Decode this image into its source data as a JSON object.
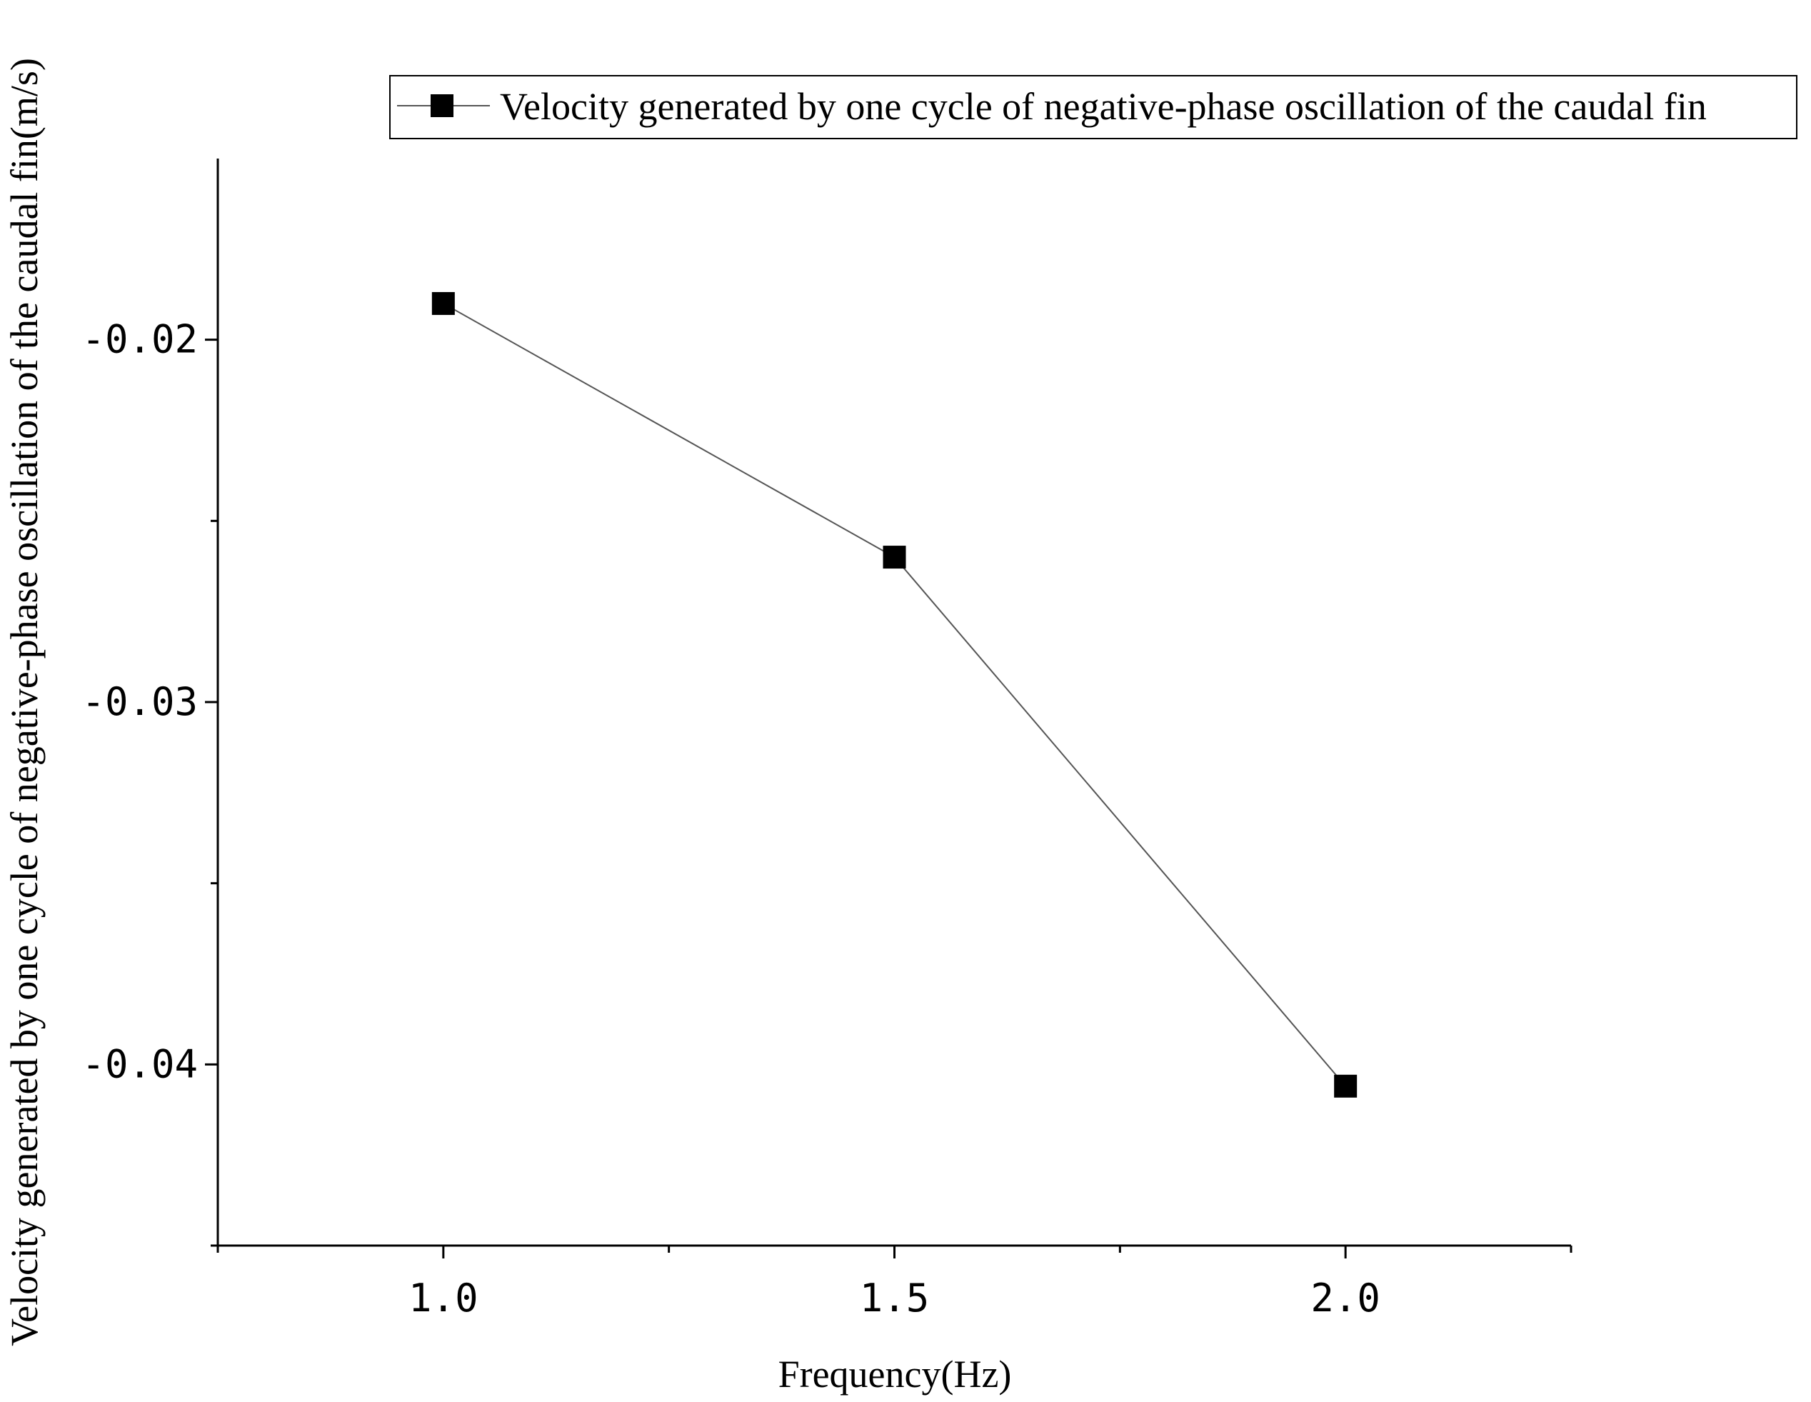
{
  "chart_data": {
    "type": "line",
    "title": "",
    "xlabel": "Frequency(Hz)",
    "ylabel": "Velocity generated by one cycle of negative-phase oscillation of the caudal fin(m/s)",
    "xlim": [
      0.75,
      2.25
    ],
    "ylim": [
      -0.045,
      -0.015
    ],
    "x_ticks": [
      1.0,
      1.5,
      2.0
    ],
    "x_tick_labels": [
      "1.0",
      "1.5",
      "2.0"
    ],
    "x_minor_ticks": [
      0.75,
      1.25,
      1.75,
      2.25
    ],
    "y_ticks": [
      -0.02,
      -0.03,
      -0.04
    ],
    "y_tick_labels": [
      "-0.02",
      "-0.03",
      "-0.04"
    ],
    "y_minor_ticks": [
      -0.025,
      -0.035,
      -0.045
    ],
    "grid": false,
    "legend_position": "top-right",
    "marker": "square",
    "series": [
      {
        "name": "Velocity generated by one cycle of negative-phase oscillation of the caudal fin",
        "x": [
          1.0,
          1.5,
          2.0
        ],
        "y": [
          -0.019,
          -0.026,
          -0.0406
        ],
        "color": "#000000",
        "line_color": "#555555"
      }
    ]
  }
}
